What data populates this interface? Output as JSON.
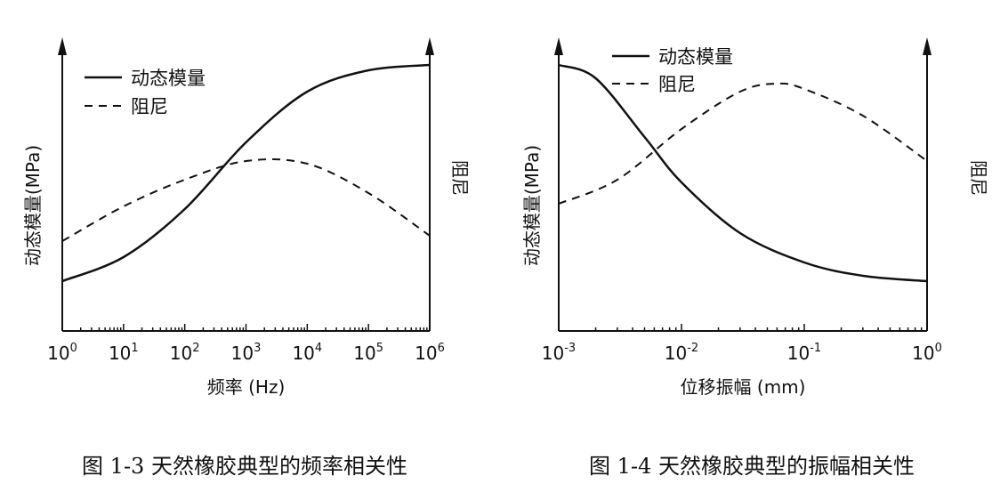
{
  "chart_data": [
    {
      "type": "line",
      "caption": "图 1-3   天然橡胶典型的频率相关性",
      "xlabel": "频率 (Hz)",
      "ylabel_left": "动态模量(MPa)",
      "ylabel_right": "阻尼",
      "x_scale": "log",
      "x_ticks": [
        {
          "base": "10",
          "exp": "0",
          "value": 1
        },
        {
          "base": "10",
          "exp": "1",
          "value": 10
        },
        {
          "base": "10",
          "exp": "2",
          "value": 100
        },
        {
          "base": "10",
          "exp": "3",
          "value": 1000
        },
        {
          "base": "10",
          "exp": "4",
          "value": 10000
        },
        {
          "base": "10",
          "exp": "5",
          "value": 100000
        },
        {
          "base": "10",
          "exp": "6",
          "value": 1000000
        }
      ],
      "xlim": [
        1,
        1000000
      ],
      "ylim": [
        0,
        1
      ],
      "legend": {
        "position": "top-left"
      },
      "series": [
        {
          "name": "动态模量",
          "style": "solid",
          "x": [
            1,
            10,
            100,
            1000,
            10000,
            100000,
            1000000
          ],
          "y": [
            0.18,
            0.27,
            0.45,
            0.7,
            0.89,
            0.97,
            0.99
          ]
        },
        {
          "name": "阻尼",
          "style": "dashed",
          "x": [
            1,
            10,
            100,
            1000,
            10000,
            100000,
            1000000
          ],
          "y": [
            0.33,
            0.46,
            0.56,
            0.63,
            0.62,
            0.51,
            0.35
          ]
        }
      ]
    },
    {
      "type": "line",
      "caption": "图 1-4   天然橡胶典型的振幅相关性",
      "xlabel": "位移振幅 (mm)",
      "ylabel_left": "动态模量(MPa)",
      "ylabel_right": "阻尼",
      "x_scale": "log",
      "x_ticks": [
        {
          "base": "10",
          "exp": "-3",
          "value": 0.001
        },
        {
          "base": "10",
          "exp": "-2",
          "value": 0.01
        },
        {
          "base": "10",
          "exp": "-1",
          "value": 0.1
        },
        {
          "base": "10",
          "exp": "0",
          "value": 1
        }
      ],
      "xlim": [
        0.001,
        1
      ],
      "ylim": [
        0,
        1
      ],
      "legend": {
        "position": "top-left"
      },
      "series": [
        {
          "name": "动态模量",
          "style": "solid",
          "x": [
            0.001,
            0.002,
            0.005,
            0.01,
            0.03,
            0.1,
            0.3,
            1
          ],
          "y": [
            0.99,
            0.94,
            0.72,
            0.55,
            0.36,
            0.25,
            0.2,
            0.18
          ]
        },
        {
          "name": "阻尼",
          "style": "dashed",
          "x": [
            0.001,
            0.003,
            0.01,
            0.03,
            0.06,
            0.1,
            0.3,
            1
          ],
          "y": [
            0.47,
            0.56,
            0.75,
            0.89,
            0.92,
            0.9,
            0.8,
            0.63
          ]
        }
      ]
    }
  ]
}
